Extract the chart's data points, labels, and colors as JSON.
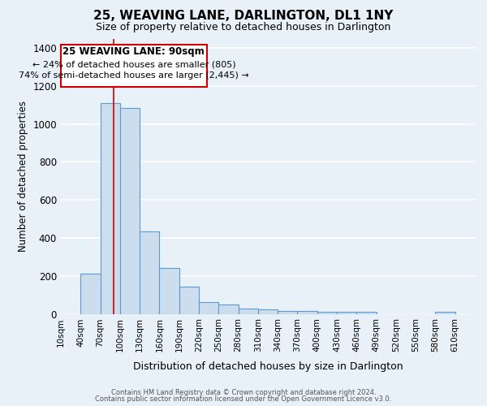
{
  "title": "25, WEAVING LANE, DARLINGTON, DL1 1NY",
  "subtitle": "Size of property relative to detached houses in Darlington",
  "xlabel": "Distribution of detached houses by size in Darlington",
  "ylabel": "Number of detached properties",
  "bar_color": "#ccdded",
  "bar_edge_color": "#5b9bd5",
  "bin_labels": [
    "10sqm",
    "40sqm",
    "70sqm",
    "100sqm",
    "130sqm",
    "160sqm",
    "190sqm",
    "220sqm",
    "250sqm",
    "280sqm",
    "310sqm",
    "340sqm",
    "370sqm",
    "400sqm",
    "430sqm",
    "460sqm",
    "490sqm",
    "520sqm",
    "550sqm",
    "580sqm",
    "610sqm"
  ],
  "bar_heights": [
    0,
    210,
    1110,
    1085,
    435,
    240,
    145,
    60,
    50,
    30,
    22,
    17,
    15,
    12,
    12,
    12,
    0,
    0,
    0,
    10,
    0
  ],
  "ylim": [
    0,
    1450
  ],
  "yticks": [
    0,
    200,
    400,
    600,
    800,
    1000,
    1200,
    1400
  ],
  "red_line_x": 90,
  "annotation_title": "25 WEAVING LANE: 90sqm",
  "annotation_line1": "← 24% of detached houses are smaller (805)",
  "annotation_line2": "74% of semi-detached houses are larger (2,445) →",
  "annotation_box_color": "#ffffff",
  "annotation_box_edge": "#cc0000",
  "red_line_color": "#cc0000",
  "footer1": "Contains HM Land Registry data © Crown copyright and database right 2024.",
  "footer2": "Contains public sector information licensed under the Open Government Licence v3.0.",
  "background_color": "#e8f0f8",
  "plot_background": "#e8f0f8",
  "grid_color": "#ffffff",
  "bin_width": 30
}
